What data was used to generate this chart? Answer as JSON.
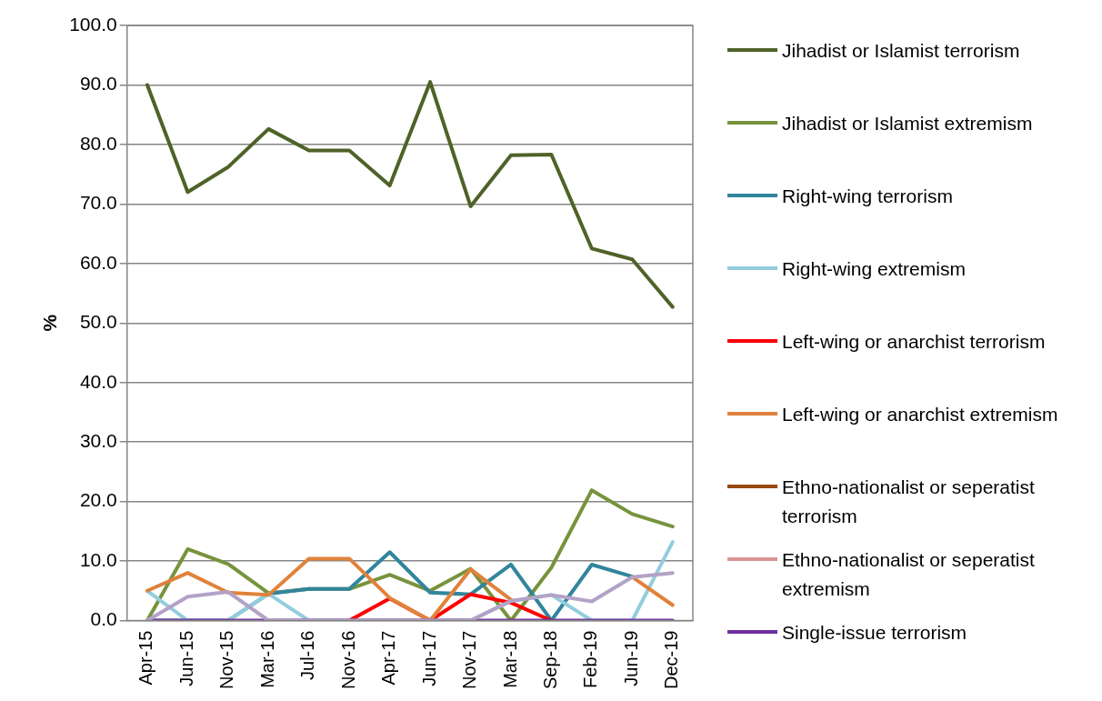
{
  "chart_data": {
    "type": "line",
    "ylabel": "%",
    "categories": [
      "Apr-15",
      "Jun-15",
      "Nov-15",
      "Mar-16",
      "Jul-16",
      "Nov-16",
      "Apr-17",
      "Jun-17",
      "Nov-17",
      "Mar-18",
      "Sep-18",
      "Feb-19",
      "Jun-19",
      "Dec-19"
    ],
    "ylim": [
      0,
      100
    ],
    "yticks": [
      {
        "value": 0,
        "label": "0.0"
      },
      {
        "value": 10,
        "label": "10.0"
      },
      {
        "value": 20,
        "label": "20.0"
      },
      {
        "value": 30,
        "label": "30.0"
      },
      {
        "value": 40,
        "label": "40.0"
      },
      {
        "value": 50,
        "label": "50.0"
      },
      {
        "value": 60,
        "label": "60.0"
      },
      {
        "value": 70,
        "label": "70.0"
      },
      {
        "value": 80,
        "label": "80.0"
      },
      {
        "value": 90,
        "label": "90.0"
      },
      {
        "value": 100,
        "label": "100.0"
      }
    ],
    "grid": "y",
    "legend": "right",
    "marker": "none",
    "line_style": "solid",
    "series": [
      {
        "name": "Jihadist or Islamist terrorism",
        "color": "#4f6228",
        "values": [
          90.0,
          72.0,
          76.2,
          82.6,
          79.0,
          79.0,
          73.1,
          90.5,
          69.6,
          78.2,
          78.3,
          62.5,
          60.7,
          52.7
        ]
      },
      {
        "name": "Jihadist or Islamist extremism",
        "color": "#77933c",
        "values": [
          0,
          12.0,
          9.5,
          4.6,
          5.3,
          5.3,
          7.7,
          5.0,
          8.7,
          0,
          8.9,
          21.9,
          17.9,
          15.8
        ]
      },
      {
        "name": "Right-wing terrorism",
        "color": "#31859c",
        "values": [
          0,
          0,
          0,
          4.5,
          5.3,
          5.3,
          11.5,
          4.7,
          4.4,
          9.4,
          0,
          9.4,
          7.4,
          null
        ]
      },
      {
        "name": "Right-wing extremism",
        "color": "#93cddd",
        "values": [
          5.0,
          0,
          0,
          4.5,
          0,
          0,
          0,
          0,
          0,
          3.3,
          4.3,
          0,
          0,
          13.2
        ]
      },
      {
        "name": "Left-wing or anarchist terrorism",
        "color": "#ff0000",
        "values": [
          null,
          null,
          null,
          null,
          null,
          0,
          3.7,
          0,
          4.4,
          3.0,
          0,
          null,
          null,
          null
        ]
      },
      {
        "name": "Left-wing or anarchist extremism",
        "color": "#e0823c",
        "values": [
          5.0,
          8.0,
          4.7,
          4.3,
          10.4,
          10.4,
          3.8,
          0,
          8.6,
          3.5,
          null,
          null,
          7.3,
          2.6
        ]
      },
      {
        "name": "Ethno-nationalist or seperatist terrorism",
        "color": "#984807",
        "values": [
          null,
          null,
          null,
          null,
          null,
          null,
          null,
          null,
          null,
          null,
          null,
          null,
          null,
          null
        ]
      },
      {
        "name": "Ethno-nationalist or seperatist extremism",
        "color": "#d99694",
        "values": [
          null,
          null,
          null,
          null,
          null,
          null,
          null,
          null,
          null,
          null,
          null,
          null,
          null,
          null
        ]
      },
      {
        "name": "Single-issue terrorism",
        "color": "#7030a0",
        "values": [
          0,
          0,
          0,
          0,
          0,
          0,
          0,
          0,
          0,
          0,
          0,
          0,
          0,
          0
        ]
      },
      {
        "color": "#b3a2c7",
        "values": [
          0,
          4.0,
          4.8,
          0,
          0,
          0,
          0,
          0,
          0,
          3.3,
          4.3,
          3.2,
          7.3,
          8.0
        ]
      }
    ]
  }
}
